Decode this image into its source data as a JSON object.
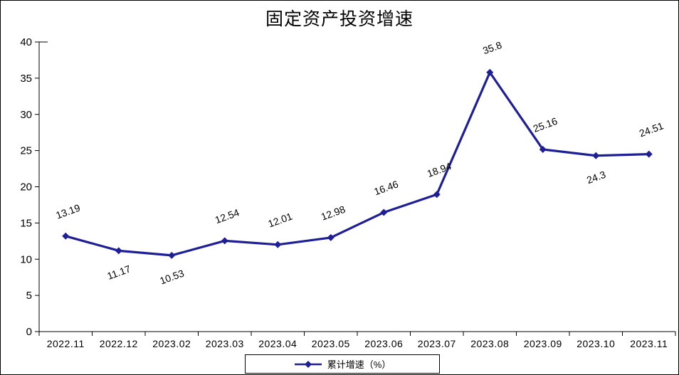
{
  "title": "固定资产投资增速",
  "colors": {
    "line": "#1E1E96",
    "axis": "#000000",
    "text": "#000000",
    "background": "#FFFFFF"
  },
  "legend": {
    "label": "累计增速（%）"
  },
  "chart_data": {
    "type": "line",
    "title": "固定资产投资增速",
    "categories": [
      "2022.11",
      "2022.12",
      "2023.02",
      "2023.03",
      "2023.04",
      "2023.05",
      "2023.06",
      "2023.07",
      "2023.08",
      "2023.09",
      "2023.10",
      "2023.11"
    ],
    "series": [
      {
        "name": "累计增速（%）",
        "values": [
          13.19,
          11.17,
          10.53,
          12.54,
          12.01,
          12.98,
          16.46,
          18.94,
          35.8,
          25.16,
          24.3,
          24.51
        ]
      }
    ],
    "data_labels": [
      "13.19",
      "11.17",
      "10.53",
      "12.54",
      "12.01",
      "12.98",
      "16.46",
      "18.94",
      "35.8",
      "25.16",
      "24.3",
      "24.51"
    ],
    "label_positions": [
      "above",
      "below",
      "below",
      "above",
      "above",
      "above",
      "above",
      "above",
      "above",
      "above",
      "below",
      "above"
    ],
    "label_rotation_deg": -20,
    "xlabel": "",
    "ylabel": "",
    "ylim": [
      0,
      40
    ],
    "yticks": [
      0,
      5,
      10,
      15,
      20,
      25,
      30,
      35,
      40
    ],
    "grid": false,
    "legend_position": "bottom",
    "marker": "diamond"
  }
}
